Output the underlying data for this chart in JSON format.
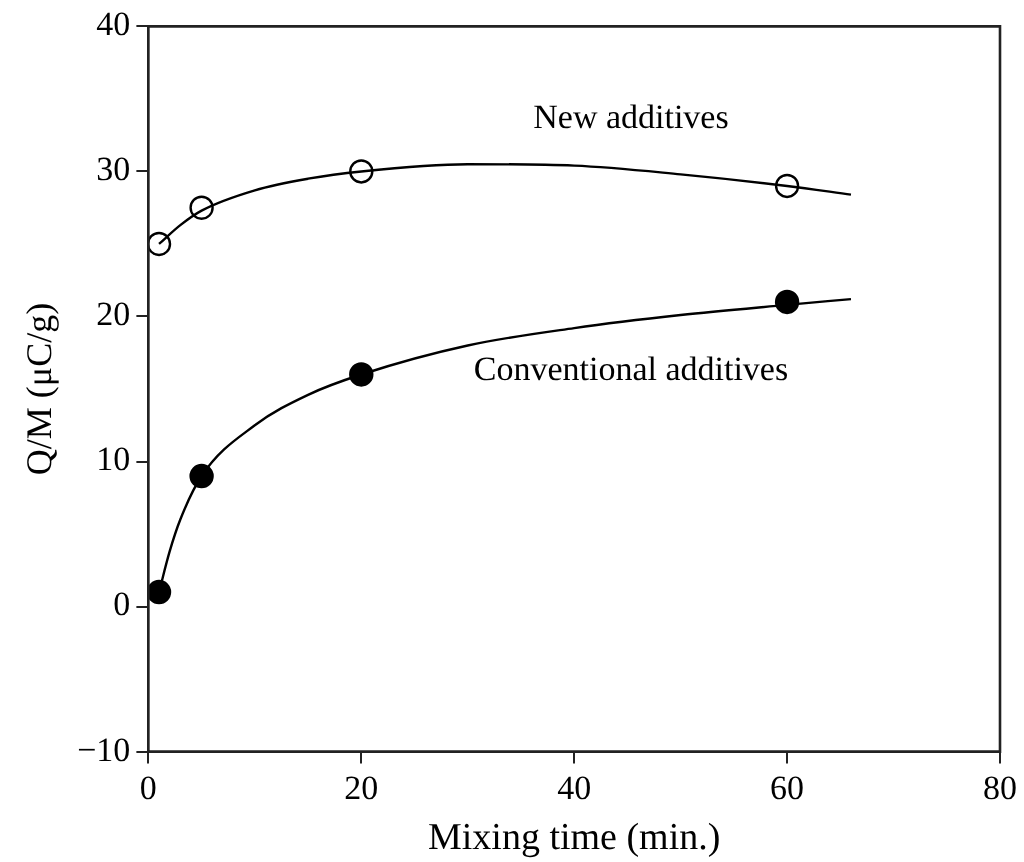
{
  "chart_data": {
    "type": "scatter",
    "xlabel": "Mixing time (min.)",
    "ylabel": "Q/M (μC/g)",
    "xlim": [
      0,
      80
    ],
    "xticks": [
      0,
      20,
      40,
      60,
      80
    ],
    "ylim": [
      -10,
      40
    ],
    "yticks": [
      -10,
      0,
      10,
      20,
      30,
      40
    ],
    "grid": false,
    "legend": false,
    "marker": "circle",
    "series": [
      {
        "type": "line",
        "name": "New additives",
        "color": "#000000",
        "marker": "none",
        "x": [
          1,
          3,
          5,
          10,
          15,
          20,
          30,
          40,
          50,
          60,
          66
        ],
        "values": [
          25,
          26.3,
          27.3,
          28.7,
          29.5,
          30,
          30.5,
          30.4,
          29.8,
          29,
          28.4
        ]
      },
      {
        "type": "line",
        "name": "Conventional additives",
        "color": "#000000",
        "marker": "none",
        "x": [
          1,
          2,
          3,
          5,
          10,
          15,
          20,
          30,
          40,
          50,
          60,
          66
        ],
        "values": [
          1,
          3.8,
          6,
          9,
          12.5,
          14.6,
          16,
          18,
          19.2,
          20.1,
          20.8,
          21.2
        ]
      },
      {
        "type": "scatter",
        "color": "#ffffff",
        "x": [
          1,
          5,
          20,
          60
        ],
        "values": [
          25,
          27.5,
          30,
          29
        ]
      },
      {
        "type": "scatter",
        "color": "#000000",
        "x": [
          1,
          5,
          20,
          60
        ],
        "values": [
          1,
          9,
          16,
          21
        ]
      }
    ]
  }
}
